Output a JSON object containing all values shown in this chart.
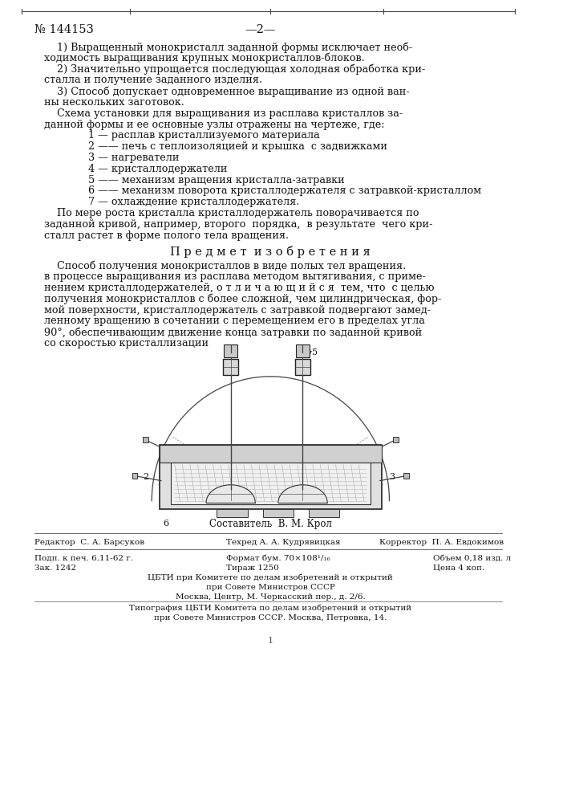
{
  "patent_number": "№ 144153",
  "page_number": "—2—",
  "background_color": "#ffffff",
  "text_color": "#1a1a1a",
  "font_size_body": 9.2,
  "paragraphs_p1": [
    "    1) Выращенный монокристалл заданной формы исключает необ-",
    "ходимость выращивания крупных монокристаллов-блоков."
  ],
  "paragraphs_p2": [
    "    2) Значительно упрощается последующая холодная обработка кри-",
    "сталла и получение заданного изделия."
  ],
  "paragraphs_p3": [
    "    3) Способ допускает одновременное выращивание из одной ван-",
    "ны нескольких заготовок."
  ],
  "paragraphs_p4": [
    "    Схема установки для выращивания из расплава кристаллов за-",
    "данной формы и ее основные узлы отражены на чертеже, где:"
  ],
  "legend_items": [
    "1 — расплав кристаллизуемого материала",
    "2 —— печь с теплоизоляцией и крышка  с задвижками",
    "3 — нагреватели",
    "4 — кристаллодержатели",
    "5 —— механизм вращения кристалла-затравки",
    "6 —— механизм поворота кристаллодержателя с затравкой-кристаллом",
    "7 — охлаждение кристаллодержателя."
  ],
  "after_legend": [
    "    По мере роста кристалла кристаллодержатель поворачивается по",
    "заданной кривой, например, второго  порядка,  в результате  чего кри-",
    "сталл растет в форме полого тела вращения."
  ],
  "section_title": "П р е д м е т  и з о б р е т е н и я",
  "main_text_lines": [
    "    Способ получения монокристаллов в виде полых тел вращения.",
    "в процессе выращивания из расплава методом вытягивания, с приме-",
    "нением кристаллодержателей, о т л и ч а ю щ и й с я  тем, что  с целью",
    "получения монокристаллов с более сложной, чем цилиндрическая, фор-",
    "мой поверхности, кристаллодержатель с затравкой подвергают замед-",
    "ленному вращению в сочетании с перемещением его в пределах угла",
    "90°, обеспечивающим движение конца затравки по заданной кривой",
    "со скоростью кристаллизации"
  ],
  "footer_composer": "Составитель  В. М. Крол",
  "footer_editor": "Редактор  С. А. Барсуков",
  "footer_tech": "Техред А. А. Кудрявицкая",
  "footer_corrector": "Корректор  П. А. Евдокимов",
  "footer_print_date": "Подп. к печ. 6.11-62 г.",
  "footer_format": "Формат бум. 70×108¹/₁₆",
  "footer_volume": "Объем 0,18 изд. л",
  "footer_order": "Зак. 1242",
  "footer_circulation": "Тираж 1250",
  "footer_price": "Цена 4 коп.",
  "footer_org1": "ЦБТИ при Комитете по делам изобретений и открытий",
  "footer_org2": "при Совете Министров СССР",
  "footer_org3": "Москва, Центр, М. Черкасский пер., д. 2/6.",
  "footer_print1": "Типография ЦБТИ Комитета по делам изобретений и открытий",
  "footer_print2": "при Совете Министров СССР. Москва, Петровка, 14."
}
